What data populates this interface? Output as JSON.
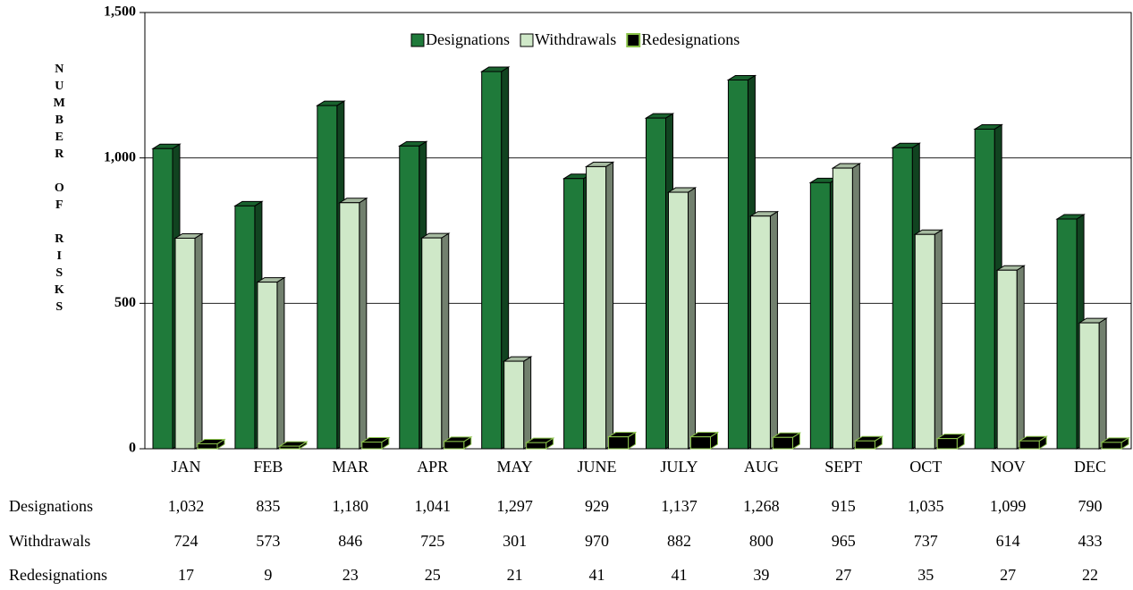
{
  "chart_data": {
    "type": "bar",
    "y_label": "NUMBER OF RISKS",
    "categories": [
      "JAN",
      "FEB",
      "MAR",
      "APR",
      "MAY",
      "JUNE",
      "JULY",
      "AUG",
      "SEPT",
      "OCT",
      "NOV",
      "DEC"
    ],
    "series": [
      {
        "name": "Designations",
        "color": "#1f7a3a",
        "values": [
          1032,
          835,
          1180,
          1041,
          1297,
          929,
          1137,
          1268,
          915,
          1035,
          1099,
          790
        ],
        "value_labels": [
          "1,032",
          "835",
          "1,180",
          "1,041",
          "1,297",
          "929",
          "1,137",
          "1,268",
          "915",
          "1,035",
          "1,099",
          "790"
        ]
      },
      {
        "name": "Withdrawals",
        "color": "#cfe8c8",
        "values": [
          724,
          573,
          846,
          725,
          301,
          970,
          882,
          800,
          965,
          737,
          614,
          433
        ]
      },
      {
        "name": "Redesignations",
        "color": "#000000",
        "values": [
          17,
          9,
          23,
          25,
          21,
          41,
          41,
          39,
          27,
          35,
          27,
          22
        ]
      }
    ],
    "ylim": [
      0,
      1500
    ],
    "yticks": [
      0,
      500,
      {
        "value": 1000,
        "label": "1,000"
      },
      {
        "value": 1500,
        "label": "1,500"
      }
    ],
    "grid": true
  }
}
